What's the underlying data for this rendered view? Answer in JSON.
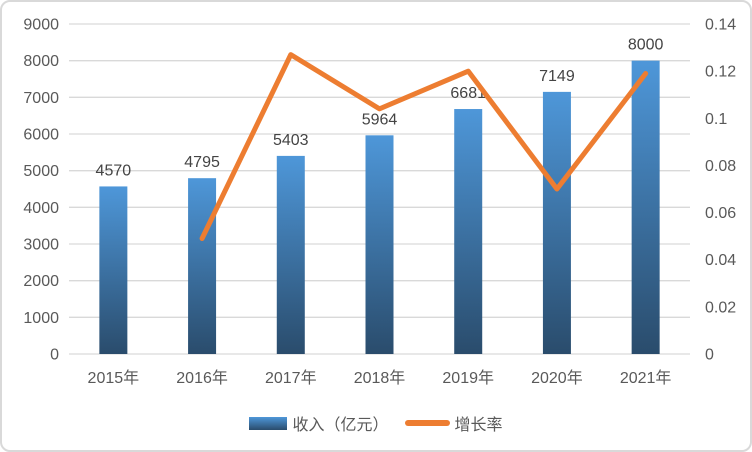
{
  "chart_data": {
    "type": "combo",
    "subtype": [
      "bar",
      "line"
    ],
    "categories": [
      "2015年",
      "2016年",
      "2017年",
      "2018年",
      "2019年",
      "2020年",
      "2021年"
    ],
    "series": [
      {
        "name": "收入（亿元）",
        "type": "bar",
        "axis": "left",
        "values": [
          4570,
          4795,
          5403,
          5964,
          6681,
          7149,
          8000
        ],
        "data_labels": [
          "4570",
          "4795",
          "5403",
          "5964",
          "6681",
          "7149",
          "8000"
        ]
      },
      {
        "name": "增长率",
        "type": "line",
        "axis": "right",
        "values": [
          null,
          0.049,
          0.127,
          0.104,
          0.12,
          0.07,
          0.119
        ]
      }
    ],
    "left_axis": {
      "min": 0,
      "max": 9000,
      "step": 1000,
      "ticks": [
        "0",
        "1000",
        "2000",
        "3000",
        "4000",
        "5000",
        "6000",
        "7000",
        "8000",
        "9000"
      ]
    },
    "right_axis": {
      "min": 0,
      "max": 0.14,
      "step": 0.02,
      "ticks": [
        "0",
        "0.02",
        "0.04",
        "0.06",
        "0.08",
        "0.1",
        "0.12",
        "0.14"
      ]
    },
    "grid": true,
    "legend_position": "bottom",
    "title": ""
  },
  "legend": {
    "items": [
      {
        "label": "收入（亿元）",
        "swatch": "bar"
      },
      {
        "label": "增长率",
        "swatch": "line"
      }
    ]
  },
  "colors": {
    "bar_gradient_top": "#4e97d9",
    "bar_gradient_bottom": "#2a4c6c",
    "line": "#ed7d31",
    "gridline": "#d9d9d9",
    "axis_text": "#595959",
    "data_label_text": "#444444",
    "chart_border": "#d9d9d9",
    "background": "#ffffff"
  }
}
